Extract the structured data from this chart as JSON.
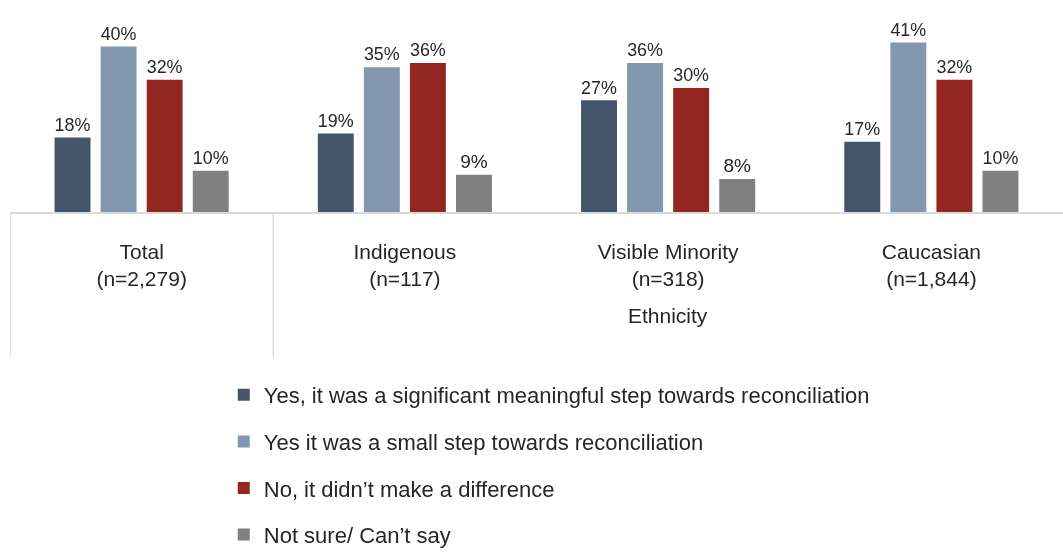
{
  "chart_data": {
    "type": "bar",
    "categories": [
      "Total\n(n=2,279)",
      "Indigenous\n(n=117)",
      "Visible Minority\n(n=318)",
      "Caucasian\n(n=1,844)"
    ],
    "series": [
      {
        "name": "Yes, it was a significant meaningful step towards reconciliation",
        "color": "#44546a",
        "values": [
          18,
          19,
          27,
          17
        ],
        "value_labels": [
          "18%",
          "19%",
          "27%",
          "17%"
        ]
      },
      {
        "name": "Yes it was a small step towards reconciliation",
        "color": "#8497b0",
        "values": [
          40,
          35,
          36,
          41
        ],
        "value_labels": [
          "40%",
          "35%",
          "36%",
          "41%"
        ]
      },
      {
        "name": "No, it didn’t make a difference",
        "color": "#942621",
        "values": [
          32,
          36,
          30,
          32
        ],
        "value_labels": [
          "32%",
          "36%",
          "30%",
          "32%"
        ]
      },
      {
        "name": "Not sure/ Can’t say",
        "color": "#808080",
        "values": [
          10,
          9,
          8,
          10
        ],
        "value_labels": [
          "10%",
          "9%",
          "8%",
          "10%"
        ]
      }
    ],
    "annotations": [
      "Ethnicity"
    ],
    "legend": "bottom",
    "tick_labels": "x"
  }
}
